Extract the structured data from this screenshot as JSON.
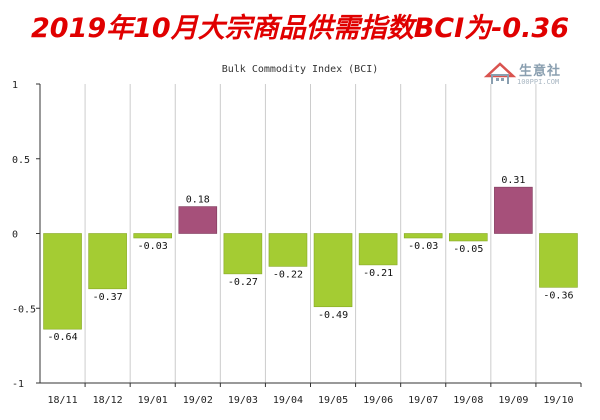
{
  "headline": "2019年10月大宗商品供需指数BCI为-0.36",
  "watermark": {
    "name": "生意社",
    "url": "100PPI.COM",
    "icon": "house-logo-icon"
  },
  "colors": {
    "headline": "#e00000",
    "negative_bar": "#a4cc33",
    "positive_bar": "#a6507a",
    "grid": "#cccccc",
    "plot_bg": "#ffffff"
  },
  "chart_data": {
    "type": "bar",
    "title": "Bulk Commodity Index (BCI)",
    "xlabel": "",
    "ylabel": "",
    "categories": [
      "18/11",
      "18/12",
      "19/01",
      "19/02",
      "19/03",
      "19/04",
      "19/05",
      "19/06",
      "19/07",
      "19/08",
      "19/09",
      "19/10"
    ],
    "values": [
      -0.64,
      -0.37,
      -0.03,
      0.18,
      -0.27,
      -0.22,
      -0.49,
      -0.21,
      -0.03,
      -0.05,
      0.31,
      -0.36
    ],
    "value_labels": [
      "-0.64",
      "-0.37",
      "-0.03",
      "0.18",
      "-0.27",
      "-0.22",
      "-0.49",
      "-0.21",
      "-0.03",
      "-0.05",
      "0.31",
      "-0.36"
    ],
    "ylim": [
      -1,
      1
    ],
    "yticks": [
      1,
      0.5,
      0,
      -0.5,
      -1
    ],
    "ytick_labels": [
      "1",
      "0.5",
      "0",
      "-0.5",
      "-1"
    ],
    "grid": "vertical",
    "legend": "none"
  }
}
